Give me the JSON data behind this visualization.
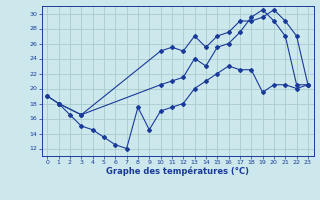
{
  "title": "Graphe des températures (°C)",
  "bg_color": "#cce8ec",
  "grid_color": "#aacccc",
  "line_color": "#1a3a9a",
  "xlim": [
    -0.5,
    23.5
  ],
  "ylim": [
    11,
    31
  ],
  "yticks": [
    12,
    14,
    16,
    18,
    20,
    22,
    24,
    26,
    28,
    30
  ],
  "xticks": [
    0,
    1,
    2,
    3,
    4,
    5,
    6,
    7,
    8,
    9,
    10,
    11,
    12,
    13,
    14,
    15,
    16,
    17,
    18,
    19,
    20,
    21,
    22,
    23
  ],
  "line1_x": [
    0,
    1,
    2,
    3,
    4,
    5,
    6,
    7,
    8,
    9,
    10,
    11,
    12,
    13,
    14,
    15,
    16,
    17,
    18,
    19,
    20,
    21,
    22,
    23
  ],
  "line1_y": [
    19.0,
    18.0,
    16.5,
    15.0,
    14.5,
    13.5,
    12.5,
    12.0,
    17.5,
    14.5,
    17.0,
    17.5,
    18.0,
    20.0,
    21.0,
    22.0,
    23.0,
    22.5,
    22.5,
    19.5,
    20.5,
    20.5,
    20.0,
    20.5
  ],
  "line2_x": [
    0,
    1,
    3,
    10,
    11,
    12,
    13,
    14,
    15,
    16,
    17,
    18,
    19,
    20,
    21,
    22,
    23
  ],
  "line2_y": [
    19.0,
    18.0,
    16.5,
    20.5,
    21.0,
    21.5,
    24.0,
    23.0,
    25.5,
    26.0,
    27.5,
    29.5,
    30.5,
    29.0,
    27.0,
    20.5,
    20.5
  ],
  "line3_x": [
    1,
    3,
    10,
    11,
    12,
    13,
    14,
    15,
    16,
    17,
    18,
    19,
    20,
    21,
    22,
    23
  ],
  "line3_y": [
    18.0,
    16.5,
    25.0,
    25.5,
    25.0,
    27.0,
    25.5,
    27.0,
    27.5,
    29.0,
    29.0,
    29.5,
    30.5,
    29.0,
    27.0,
    20.5
  ]
}
